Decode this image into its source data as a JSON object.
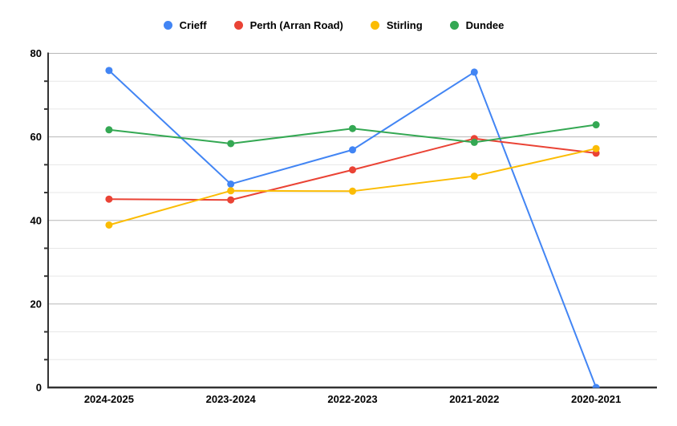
{
  "chart_data": {
    "type": "line",
    "title": "",
    "xlabel": "",
    "ylabel": "",
    "categories": [
      "2024-2025",
      "2023-2024",
      "2022-2023",
      "2021-2022",
      "2020-2021"
    ],
    "series": [
      {
        "name": "Crieff",
        "color": "#4285f4",
        "values": [
          75.9,
          48.7,
          56.9,
          75.5,
          0
        ]
      },
      {
        "name": "Perth (Arran Road)",
        "color": "#ea4335",
        "values": [
          45.1,
          44.9,
          52.1,
          59.6,
          56.1
        ]
      },
      {
        "name": "Stirling",
        "color": "#fbbc04",
        "values": [
          38.9,
          47.1,
          47.0,
          50.6,
          57.2
        ]
      },
      {
        "name": "Dundee",
        "color": "#34a853",
        "values": [
          61.7,
          58.4,
          62.0,
          58.7,
          62.9
        ]
      }
    ],
    "ylim": [
      0,
      80
    ],
    "y_major_ticks": [
      0,
      20,
      40,
      60,
      80
    ],
    "y_minor_divisions_per_major": 3,
    "grid": true,
    "legend_position": "top",
    "marker": "circle"
  },
  "style_colors": {
    "major_gridline": "#b7b7b7",
    "minor_gridline": "#e7e7e7",
    "axis_line": "#333333",
    "label_color": "#000000",
    "background": "#ffffff"
  }
}
